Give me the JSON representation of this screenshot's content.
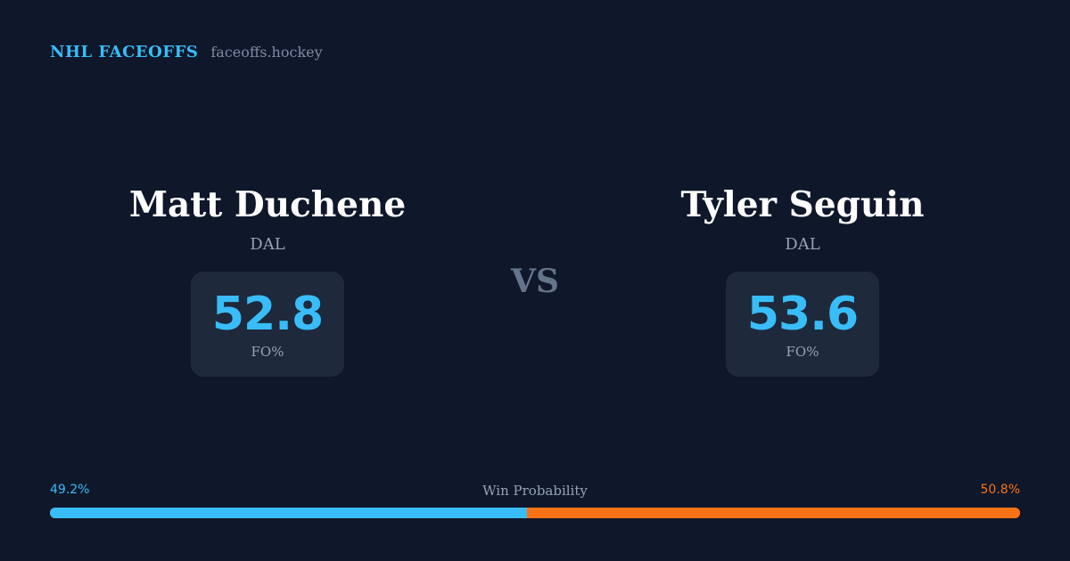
{
  "brand": {
    "title": "NHL FACEOFFS",
    "url": "faceoffs.hockey"
  },
  "players": [
    {
      "name": "Matt Duchene",
      "team": "DAL",
      "stat_value": "52.8",
      "stat_label": "FO%"
    },
    {
      "name": "Tyler Seguin",
      "team": "DAL",
      "stat_value": "53.6",
      "stat_label": "FO%"
    }
  ],
  "vs_label": "VS",
  "win_probability": {
    "title": "Win Probability",
    "left_label": "49.2%",
    "right_label": "50.8%",
    "left_value": 49.2,
    "right_value": 50.8,
    "left_color": "#38bdf8",
    "right_color": "#f97316"
  },
  "colors": {
    "background": "#0f172a",
    "card": "#1e293b",
    "accent": "#38bdf8",
    "opponent": "#f97316"
  }
}
